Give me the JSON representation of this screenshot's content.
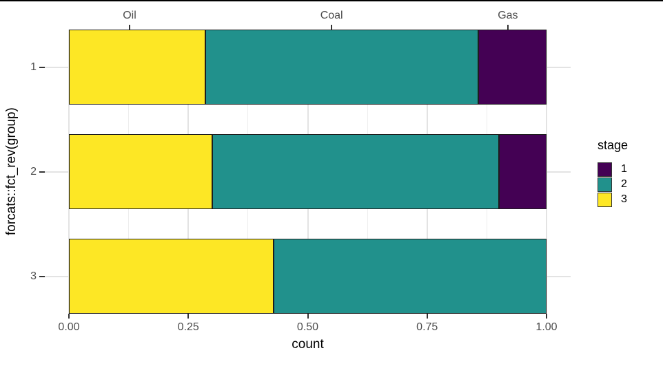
{
  "figure": {
    "y_axis": {
      "label": "forcats::fct_rev(group)",
      "categories": [
        "1",
        "2",
        "3"
      ]
    },
    "x_axis": {
      "label": "count",
      "tick_labels": [
        "0.00",
        "0.25",
        "0.50",
        "0.75",
        "1.00"
      ]
    },
    "top_axis": {
      "labels": [
        "Oil",
        "Coal",
        "Gas"
      ]
    },
    "legend": {
      "title": "stage"
    }
  },
  "chart_data": {
    "type": "bar",
    "orientation": "horizontal",
    "stacked": true,
    "normalized": true,
    "title": "",
    "xlabel": "count",
    "ylabel": "forcats::fct_rev(group)",
    "xlim": [
      0,
      1
    ],
    "grid": true,
    "x_ticks": {
      "values": [
        0,
        0.25,
        0.5,
        0.75,
        1.0
      ],
      "labels": [
        "0.00",
        "0.25",
        "0.50",
        "0.75",
        "1.00"
      ]
    },
    "x_minor_ticks": [
      0.125,
      0.375,
      0.625,
      0.875
    ],
    "categories": [
      "1",
      "2",
      "3"
    ],
    "series": [
      {
        "name": "1",
        "color": "#440154",
        "values": [
          0.143,
          0.1,
          0.0
        ]
      },
      {
        "name": "2",
        "color": "#21918c",
        "values": [
          0.571,
          0.6,
          0.571
        ]
      },
      {
        "name": "3",
        "color": "#fde725",
        "values": [
          0.286,
          0.3,
          0.429
        ]
      }
    ],
    "bars": [
      {
        "category": "1",
        "segments": [
          {
            "stage": "3",
            "from": 0.0,
            "to": 0.286
          },
          {
            "stage": "2",
            "from": 0.286,
            "to": 0.857
          },
          {
            "stage": "1",
            "from": 0.857,
            "to": 1.0
          }
        ]
      },
      {
        "category": "2",
        "segments": [
          {
            "stage": "3",
            "from": 0.0,
            "to": 0.3
          },
          {
            "stage": "2",
            "from": 0.3,
            "to": 0.9
          },
          {
            "stage": "1",
            "from": 0.9,
            "to": 1.0
          }
        ]
      },
      {
        "category": "3",
        "segments": [
          {
            "stage": "3",
            "from": 0.0,
            "to": 0.429
          },
          {
            "stage": "2",
            "from": 0.429,
            "to": 1.0
          }
        ]
      }
    ],
    "top_axis_labels": [
      {
        "label": "Oil",
        "x": 0.127
      },
      {
        "label": "Coal",
        "x": 0.55
      },
      {
        "label": "Gas",
        "x": 0.919
      }
    ],
    "legend": {
      "title": "stage",
      "position": "right",
      "entries": [
        {
          "label": "1",
          "color": "#440154"
        },
        {
          "label": "2",
          "color": "#21918c"
        },
        {
          "label": "3",
          "color": "#fde725"
        }
      ]
    }
  }
}
